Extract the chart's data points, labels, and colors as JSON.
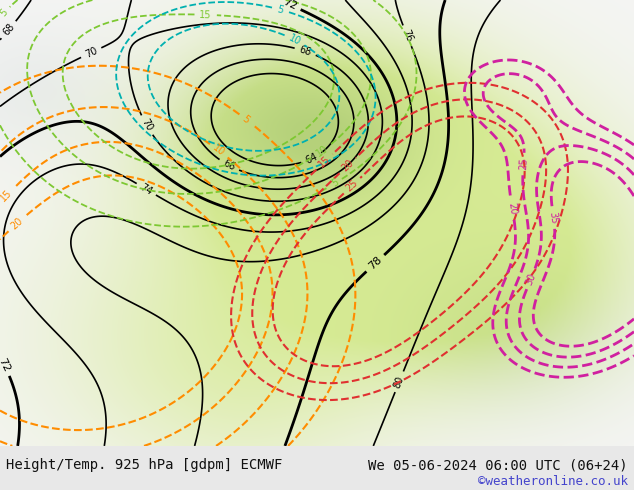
{
  "title_left": "Height/Temp. 925 hPa [gdpm] ECMWF",
  "title_right": "We 05-06-2024 06:00 UTC (06+24)",
  "credit": "©weatheronline.co.uk",
  "bg_color": "#f0f0f0",
  "bottom_bar_color": "#e8e8e8",
  "contour_black_color": "#000000",
  "contour_orange_color": "#ff8c00",
  "contour_green_color": "#7dc832",
  "contour_cyan_color": "#00b0b0",
  "contour_red_color": "#e03030",
  "contour_magenta_color": "#d020a0",
  "title_fontsize": 10,
  "credit_fontsize": 9,
  "credit_color": "#4444cc",
  "figsize": [
    6.34,
    4.9
  ],
  "dpi": 100
}
